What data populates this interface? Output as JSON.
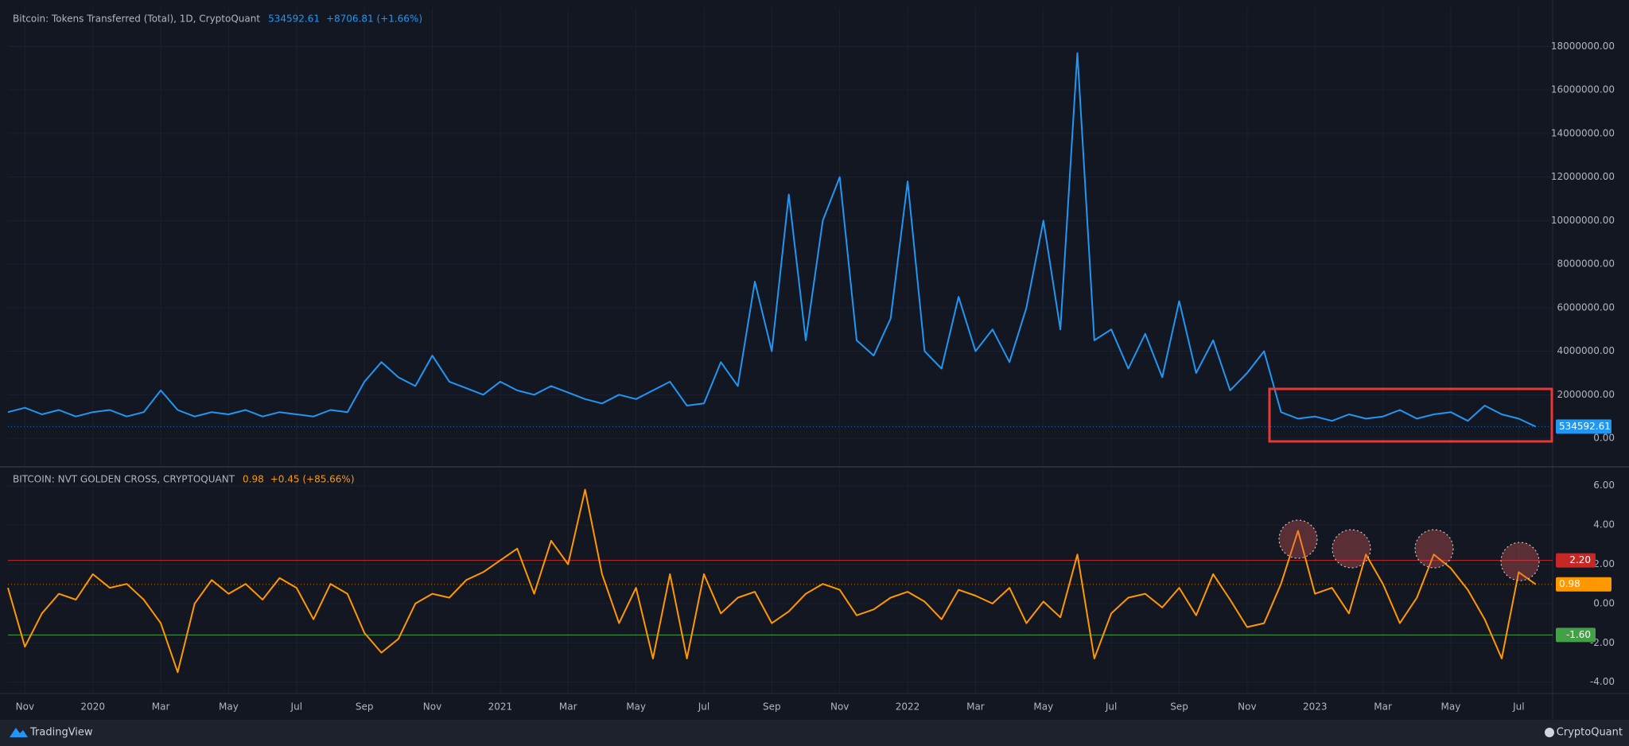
{
  "chart_data": [
    {
      "type": "line",
      "title": "Bitcoin: Tokens Transferred (Total), 1D, CryptoQuant",
      "change": "+8706.81 (+1.66%)",
      "xlim": [
        0,
        91
      ],
      "ylim": [
        -1240000,
        19770000
      ],
      "yticks": [
        {
          "value": 0,
          "label": "0.00"
        },
        {
          "value": 2000000,
          "label": "2000000.00"
        },
        {
          "value": 4000000,
          "label": "4000000.00"
        },
        {
          "value": 6000000,
          "label": "6000000.00"
        },
        {
          "value": 8000000,
          "label": "8000000.00"
        },
        {
          "value": 10000000,
          "label": "10000000.00"
        },
        {
          "value": 12000000,
          "label": "12000000.00"
        },
        {
          "value": 14000000,
          "label": "14000000.00"
        },
        {
          "value": 16000000,
          "label": "16000000.00"
        },
        {
          "value": 18000000,
          "label": "18000000.00"
        }
      ],
      "grid": true,
      "series": [
        {
          "name": "Tokens Transferred (Total)",
          "color": "#2196f3",
          "values": [
            1200000,
            1400000,
            1100000,
            1300000,
            1000000,
            1200000,
            1300000,
            1000000,
            1200000,
            2200000,
            1300000,
            1000000,
            1200000,
            1100000,
            1300000,
            1000000,
            1200000,
            1100000,
            1000000,
            1300000,
            1200000,
            2600000,
            3500000,
            2800000,
            2400000,
            3800000,
            2600000,
            2300000,
            2000000,
            2600000,
            2200000,
            2000000,
            2400000,
            2100000,
            1800000,
            1600000,
            2000000,
            1800000,
            2200000,
            2600000,
            1500000,
            1600000,
            3500000,
            2400000,
            7200000,
            4000000,
            11200000,
            4500000,
            10000000,
            12000000,
            4500000,
            3800000,
            5500000,
            11800000,
            4000000,
            3200000,
            6500000,
            4000000,
            5000000,
            3500000,
            6000000,
            10000000,
            5000000,
            17700000,
            4500000,
            5000000,
            3200000,
            4800000,
            2800000,
            6300000,
            3000000,
            4500000,
            2200000,
            3000000,
            4000000,
            1200000,
            900000,
            1000000,
            800000,
            1100000,
            900000,
            1000000,
            1300000,
            900000,
            1100000,
            1200000,
            800000,
            1500000,
            1100000,
            900000,
            534592.61
          ]
        }
      ]
    },
    {
      "type": "line",
      "title": "BITCOIN: NVT GOLDEN CROSS, CRYPTOQUANT",
      "change": "+0.45 (+85.66%)",
      "xlim": [
        0,
        91
      ],
      "ylim": [
        -4.58,
        6.84
      ],
      "xticks": [
        {
          "value": 1,
          "label": "Nov"
        },
        {
          "value": 5,
          "label": "2020"
        },
        {
          "value": 9,
          "label": "Mar"
        },
        {
          "value": 13,
          "label": "May"
        },
        {
          "value": 17,
          "label": "Jul"
        },
        {
          "value": 21,
          "label": "Sep"
        },
        {
          "value": 25,
          "label": "Nov"
        },
        {
          "value": 29,
          "label": "2021"
        },
        {
          "value": 33,
          "label": "Mar"
        },
        {
          "value": 37,
          "label": "May"
        },
        {
          "value": 41,
          "label": "Jul"
        },
        {
          "value": 45,
          "label": "Sep"
        },
        {
          "value": 49,
          "label": "Nov"
        },
        {
          "value": 53,
          "label": "2022"
        },
        {
          "value": 57,
          "label": "Mar"
        },
        {
          "value": 61,
          "label": "May"
        },
        {
          "value": 65,
          "label": "Jul"
        },
        {
          "value": 69,
          "label": "Sep"
        },
        {
          "value": 73,
          "label": "Nov"
        },
        {
          "value": 77,
          "label": "2023"
        },
        {
          "value": 81,
          "label": "Mar"
        },
        {
          "value": 85,
          "label": "May"
        },
        {
          "value": 89,
          "label": "Jul"
        }
      ],
      "yticks": [
        {
          "value": -4,
          "label": "-4.00"
        },
        {
          "value": -2,
          "label": "-2.00"
        },
        {
          "value": 0,
          "label": "0.00"
        },
        {
          "value": 2,
          "label": "2.00"
        },
        {
          "value": 4,
          "label": "4.00"
        },
        {
          "value": 6,
          "label": "6.00"
        }
      ],
      "grid": true,
      "hlines": [
        {
          "value": 2.2,
          "label": "2.20",
          "color": "#c62828"
        },
        {
          "value": -1.6,
          "label": "-1.60",
          "color": "#43a047"
        }
      ],
      "series": [
        {
          "name": "NVT Golden Cross",
          "color": "#ff9800",
          "values": [
            0.8,
            -2.2,
            -0.5,
            0.5,
            0.2,
            1.5,
            0.8,
            1.0,
            0.2,
            -1.0,
            -3.5,
            0.0,
            1.2,
            0.5,
            1.0,
            0.2,
            1.3,
            0.8,
            -0.8,
            1.0,
            0.5,
            -1.5,
            -2.5,
            -1.8,
            0.0,
            0.5,
            0.3,
            1.2,
            1.6,
            2.2,
            2.8,
            0.5,
            3.2,
            2.0,
            5.8,
            1.5,
            -1.0,
            0.8,
            -2.8,
            1.5,
            -2.8,
            1.5,
            -0.5,
            0.3,
            0.6,
            -1.0,
            -0.4,
            0.5,
            1.0,
            0.7,
            -0.6,
            -0.3,
            0.3,
            0.6,
            0.1,
            -0.8,
            0.7,
            0.4,
            0.0,
            0.8,
            -1.0,
            0.1,
            -0.7,
            2.5,
            -2.8,
            -0.5,
            0.3,
            0.5,
            -0.2,
            0.8,
            -0.6,
            1.5,
            0.2,
            -1.2,
            -1.0,
            1.0,
            3.7,
            0.5,
            0.8,
            -0.5,
            2.5,
            1.0,
            -1.0,
            0.3,
            2.5,
            1.8,
            0.7,
            -0.8,
            -2.8,
            1.6,
            0.98
          ]
        }
      ]
    }
  ],
  "footer": {
    "left": "TradingView",
    "right": "CryptoQuant"
  }
}
